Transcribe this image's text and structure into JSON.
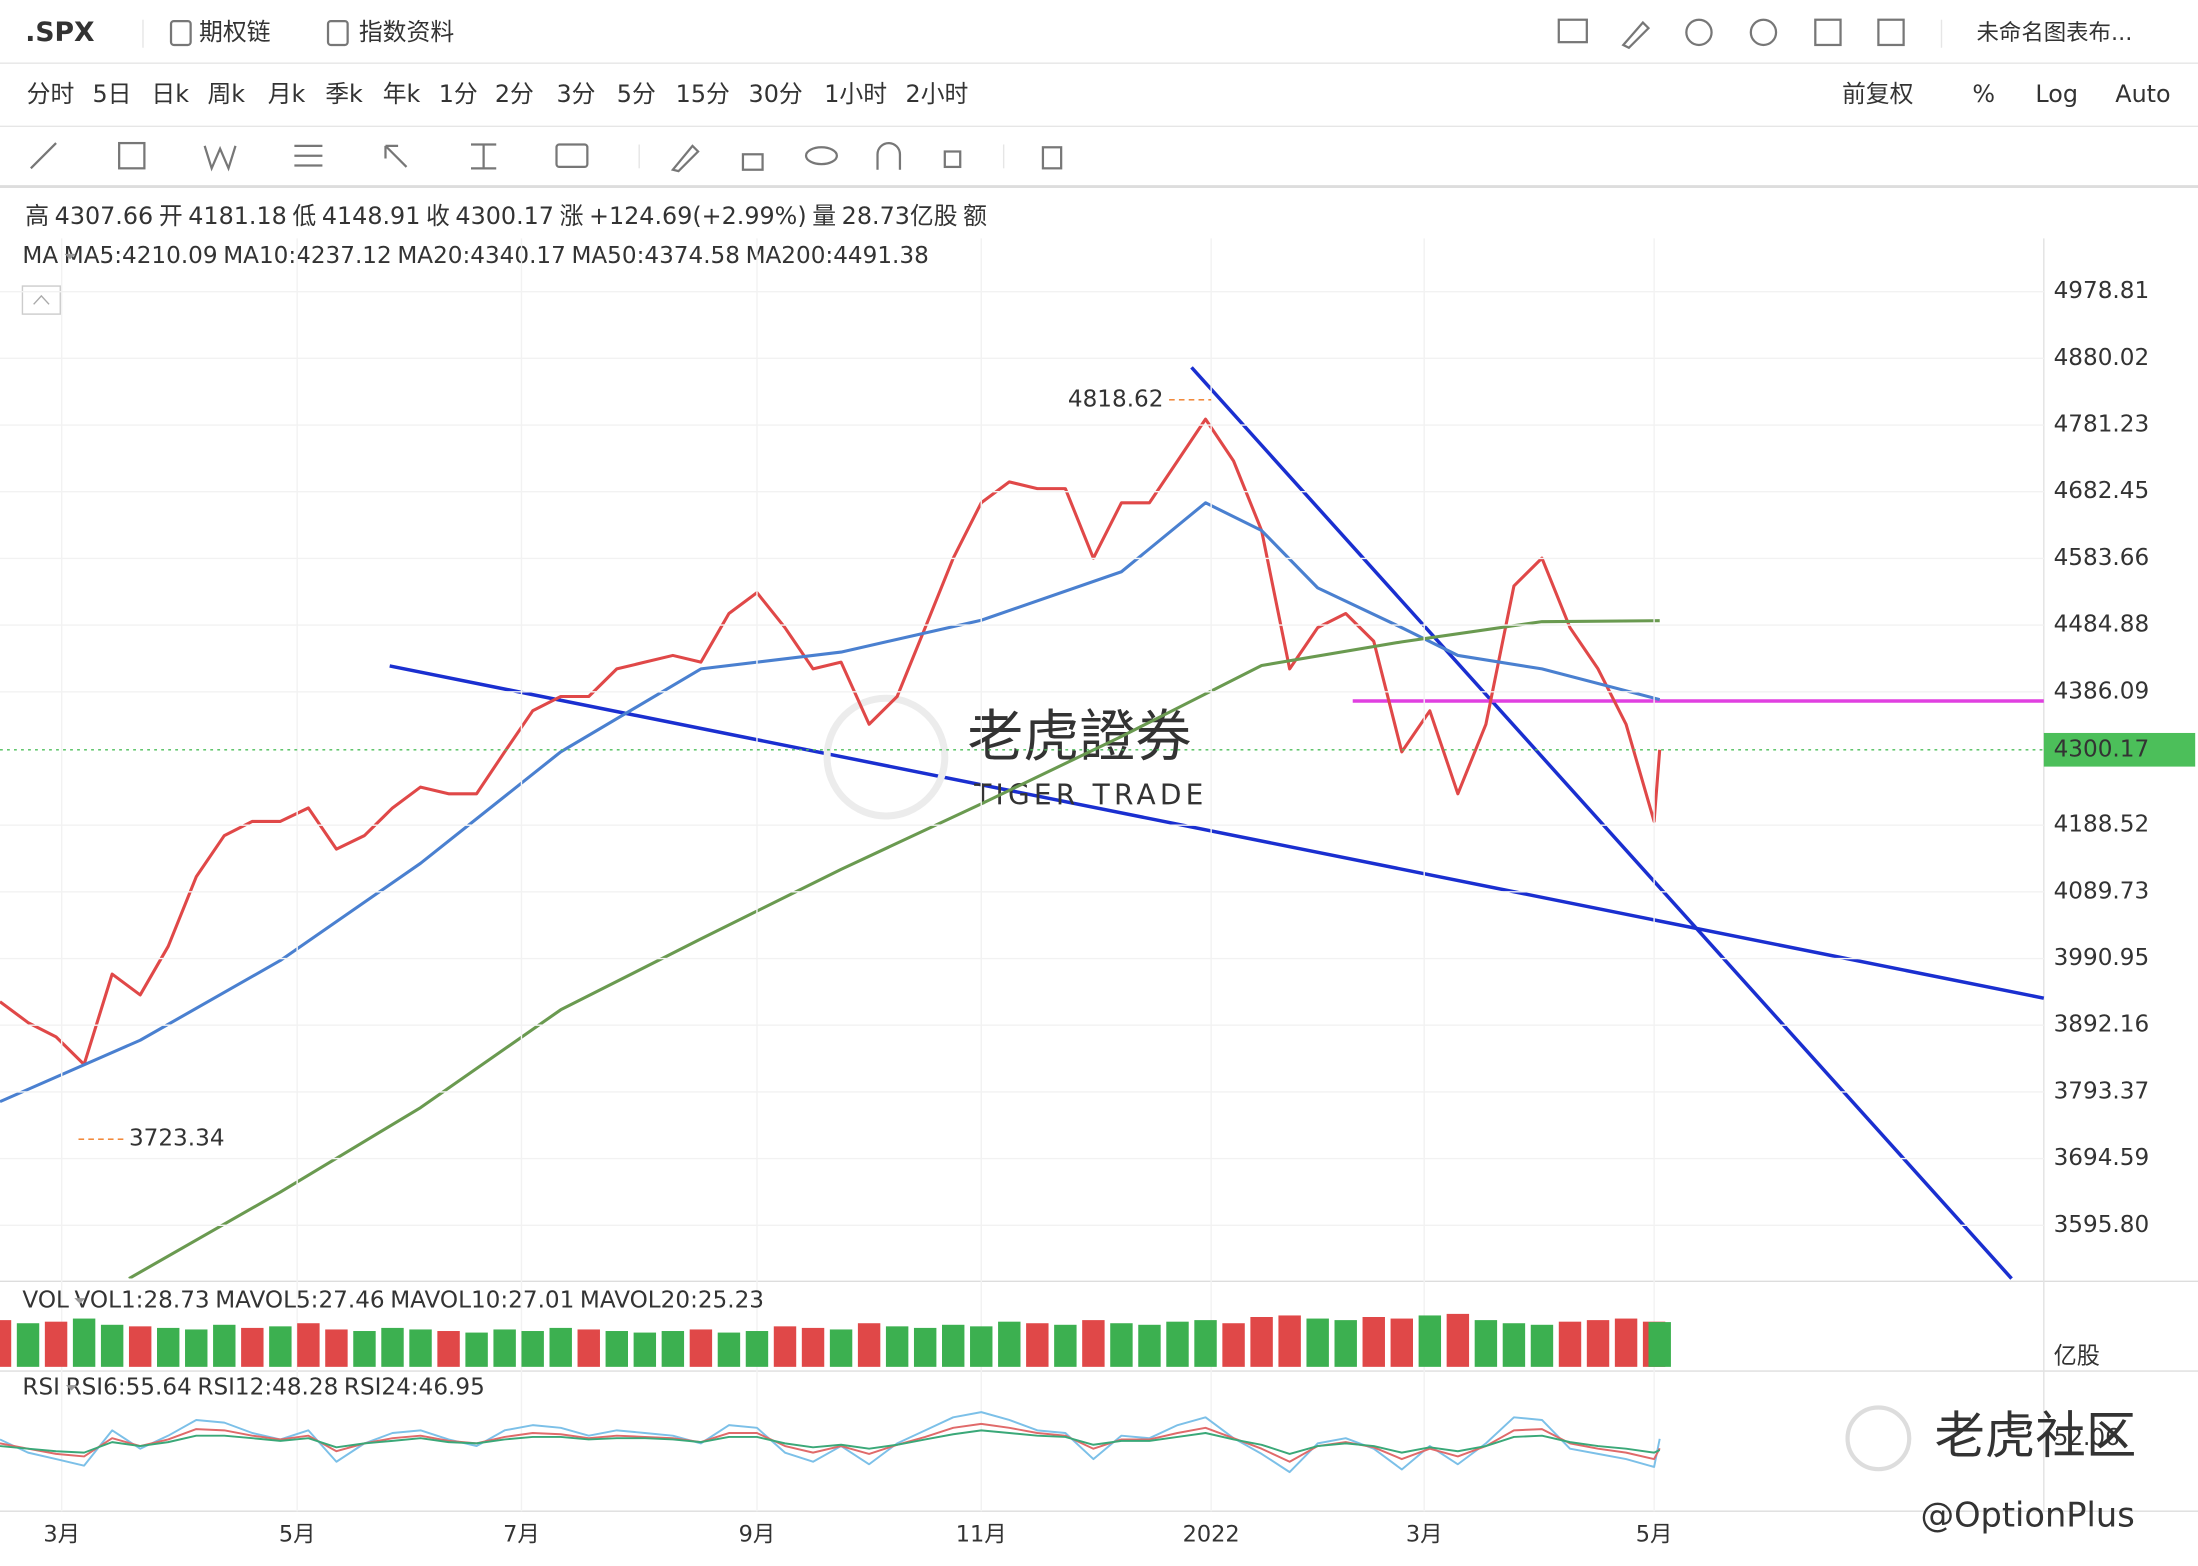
{
  "header": {
    "symbol": ".SPX",
    "links": [
      "期权链",
      "指数资料"
    ],
    "layout_name": "未命名图表布..."
  },
  "periods": [
    "分时",
    "5日",
    "日k",
    "周k",
    "月k",
    "季k",
    "年k",
    "1分",
    "2分",
    "3分",
    "5分",
    "15分",
    "30分",
    "1小时",
    "2小时"
  ],
  "active_period": 2,
  "right_controls": [
    "前复权",
    "%",
    "Log",
    "Auto"
  ],
  "quote": [
    {
      "label": "高",
      "value": 4307.66,
      "color": "#3cb050"
    },
    {
      "label": "开",
      "value": 4181.18,
      "color": "#3cb050"
    },
    {
      "label": "低",
      "value": 4148.91,
      "color": "#e04848"
    },
    {
      "label": "收",
      "value": 4300.17,
      "color": "#3cb050"
    },
    {
      "label": "涨",
      "text": "+124.69(+2.99%)",
      "color": "#3cb050"
    },
    {
      "label": "量",
      "text": "28.73亿股",
      "color": "#333333"
    },
    {
      "label": "额"
    }
  ],
  "watermarks": {
    "main": "老虎證券",
    "sub": "TIGER TRADE",
    "community": "老虎社区",
    "handle": "@OptionPlus"
  },
  "chart_data": [
    {
      "type": "line",
      "legend_label": "MA",
      "legend": [
        {
          "text": "MA5:4210.09",
          "color": "#a070e0"
        },
        {
          "text": "MA10:4237.12",
          "color": "#e0406a"
        },
        {
          "text": "MA20:4340.17",
          "color": "#f0b070"
        },
        {
          "text": "MA50:4374.58",
          "color": "#4a80d0"
        },
        {
          "text": "MA200:4491.38",
          "color": "#6a9a50"
        }
      ],
      "x": [
        0,
        5,
        10,
        15,
        20,
        25,
        30,
        35,
        40,
        45,
        50,
        55,
        60,
        65,
        70,
        75,
        80,
        85,
        90,
        95,
        100,
        105,
        110,
        115,
        120,
        125,
        130,
        135,
        140,
        145,
        150,
        155,
        160,
        165,
        170,
        175,
        180,
        185,
        190,
        195,
        200,
        205,
        210,
        215,
        220,
        225,
        230,
        235,
        240,
        245,
        250,
        255,
        260,
        265,
        270,
        275,
        280,
        285,
        290,
        295,
        296
      ],
      "xlim": [
        0,
        364.5
      ],
      "xticks": [
        {
          "value": 11,
          "label": "3月"
        },
        {
          "value": 53,
          "label": "5月"
        },
        {
          "value": 93,
          "label": "7月"
        },
        {
          "value": 135,
          "label": "9月"
        },
        {
          "value": 175,
          "label": "11月"
        },
        {
          "value": 216,
          "label": "2022"
        },
        {
          "value": 254,
          "label": "3月"
        },
        {
          "value": 295,
          "label": "5月"
        }
      ],
      "ylim": [
        3516.9,
        5057.7
      ],
      "yticks": [
        4978.81,
        4880.02,
        4781.23,
        4682.45,
        4583.66,
        4484.88,
        4386.09,
        4188.52,
        4089.73,
        3990.95,
        3892.16,
        3793.37,
        3694.59,
        {
          "value": 3595.8,
          "label": "3595.80"
        }
      ],
      "grid": true,
      "series": [
        {
          "color": "#e04848",
          "values": [
            3927,
            3896,
            3875,
            3834,
            3968,
            3937,
            4009,
            4112,
            4173,
            4194,
            4194,
            4214,
            4153,
            4173,
            4214,
            4245,
            4235,
            4235,
            4297,
            4358,
            4379,
            4379,
            4420,
            4430,
            4440,
            4430,
            4502,
            4533,
            4481,
            4420,
            4430,
            4338,
            4379,
            4481,
            4584,
            4666,
            4697,
            4687,
            4687,
            4584,
            4666,
            4666,
            4728,
            4790,
            4728,
            4625,
            4420,
            4481,
            4502,
            4461,
            4297,
            4358,
            4235,
            4338,
            4543,
            4584,
            4481,
            4420,
            4338,
            4194,
            4300.17
          ]
        },
        {
          "color": "#4a80d0",
          "x": [
            0,
            25,
            50,
            75,
            100,
            125,
            150,
            175,
            200,
            215,
            225,
            235,
            250,
            260,
            275,
            296
          ],
          "values": [
            3779,
            3870,
            3988,
            4132,
            4297,
            4420,
            4445,
            4492,
            4564,
            4666,
            4625,
            4540,
            4481,
            4440,
            4420,
            4374.58
          ]
        },
        {
          "color": "#6a9a50",
          "x": [
            23,
            50,
            75,
            100,
            125,
            150,
            175,
            200,
            225,
            250,
            275,
            296
          ],
          "values": [
            3517,
            3645,
            3770,
            3915,
            4020,
            4123,
            4220,
            4320,
            4425,
            4460,
            4490,
            4491.38
          ]
        }
      ],
      "high_marker": {
        "x": 216,
        "value": 4818.62,
        "color": "#f07a20"
      },
      "low_marker": {
        "x": 14,
        "value": 3723.34,
        "color": "#f07a20"
      },
      "last_price": {
        "value": 4300.17,
        "color": "#4cbf5a"
      }
    },
    {
      "type": "bar",
      "legend_label": "VOL",
      "legend": [
        {
          "text": "VOL1:28.73",
          "color": "#f08070"
        },
        {
          "text": "MAVOL5:27.46",
          "color": "#7cc0e8"
        },
        {
          "text": "MAVOL10:27.01",
          "color": "#d0406a"
        },
        {
          "text": "MAVOL20:25.23",
          "color": "#f0c050"
        }
      ],
      "unit": "亿股",
      "x": [
        0,
        5,
        10,
        15,
        20,
        25,
        30,
        35,
        40,
        45,
        50,
        55,
        60,
        65,
        70,
        75,
        80,
        85,
        90,
        95,
        100,
        105,
        110,
        115,
        120,
        125,
        130,
        135,
        140,
        145,
        150,
        155,
        160,
        165,
        170,
        175,
        180,
        185,
        190,
        195,
        200,
        205,
        210,
        215,
        220,
        225,
        230,
        235,
        240,
        245,
        250,
        255,
        260,
        265,
        270,
        275,
        280,
        285,
        290,
        295,
        296
      ],
      "xlim": [
        0,
        364.5
      ],
      "ylim": [
        0,
        36
      ],
      "values": [
        30,
        28,
        29,
        31,
        27,
        26,
        25,
        24,
        27,
        25,
        26,
        28,
        24,
        23,
        25,
        24,
        23,
        22,
        24,
        23,
        25,
        24,
        23,
        22,
        23,
        24,
        22,
        23,
        26,
        25,
        24,
        28,
        26,
        25,
        27,
        26,
        29,
        28,
        27,
        30,
        28,
        27,
        29,
        30,
        28,
        32,
        33,
        31,
        30,
        32,
        31,
        33,
        34,
        30,
        28,
        27,
        29,
        30,
        31,
        29,
        28.73
      ],
      "colors": [
        "#e04848",
        "#3cb050",
        "#e04848",
        "#3cb050",
        "#3cb050",
        "#e04848",
        "#3cb050",
        "#3cb050",
        "#3cb050",
        "#e04848",
        "#3cb050",
        "#e04848",
        "#e04848",
        "#3cb050",
        "#3cb050",
        "#3cb050",
        "#e04848",
        "#3cb050",
        "#3cb050",
        "#3cb050",
        "#3cb050",
        "#e04848",
        "#3cb050",
        "#3cb050",
        "#3cb050",
        "#e04848",
        "#3cb050",
        "#3cb050",
        "#e04848",
        "#e04848",
        "#3cb050",
        "#e04848",
        "#3cb050",
        "#3cb050",
        "#3cb050",
        "#3cb050",
        "#3cb050",
        "#e04848",
        "#3cb050",
        "#e04848",
        "#3cb050",
        "#3cb050",
        "#3cb050",
        "#3cb050",
        "#e04848",
        "#e04848",
        "#e04848",
        "#3cb050",
        "#3cb050",
        "#e04848",
        "#e04848",
        "#3cb050",
        "#e04848",
        "#3cb050",
        "#3cb050",
        "#3cb050",
        "#e04848",
        "#e04848",
        "#e04848",
        "#e04848",
        "#3cb050"
      ]
    },
    {
      "type": "line",
      "legend_label": "RSI",
      "legend": [
        {
          "text": "RSI6:55.64",
          "color": "#7cc0e8"
        },
        {
          "text": "RSI12:48.28",
          "color": "#e06a6a"
        },
        {
          "text": "RSI24:46.95",
          "color": "#3aa878"
        }
      ],
      "axis_label": "52.06",
      "x": [
        0,
        5,
        10,
        15,
        20,
        25,
        30,
        35,
        40,
        45,
        50,
        55,
        60,
        65,
        70,
        75,
        80,
        85,
        90,
        95,
        100,
        105,
        110,
        115,
        120,
        125,
        130,
        135,
        140,
        145,
        150,
        155,
        160,
        165,
        170,
        175,
        180,
        185,
        190,
        195,
        200,
        205,
        210,
        215,
        220,
        225,
        230,
        235,
        240,
        245,
        250,
        255,
        260,
        265,
        270,
        275,
        280,
        285,
        290,
        295,
        296
      ],
      "xlim": [
        0,
        364.5
      ],
      "ylim": [
        0,
        100
      ],
      "series": [
        {
          "color": "#7cc0e8",
          "values": [
            55,
            45,
            40,
            35,
            62,
            48,
            58,
            70,
            68,
            60,
            55,
            62,
            38,
            52,
            60,
            62,
            55,
            50,
            62,
            66,
            64,
            58,
            62,
            60,
            58,
            52,
            66,
            64,
            45,
            38,
            50,
            36,
            52,
            62,
            72,
            76,
            70,
            62,
            60,
            40,
            58,
            56,
            66,
            72,
            56,
            44,
            30,
            52,
            56,
            48,
            32,
            50,
            36,
            52,
            72,
            70,
            48,
            44,
            40,
            34,
            55.64
          ]
        },
        {
          "color": "#e06a6a",
          "values": [
            52,
            48,
            44,
            42,
            56,
            50,
            55,
            63,
            62,
            58,
            55,
            58,
            46,
            52,
            56,
            58,
            54,
            52,
            57,
            60,
            59,
            56,
            58,
            57,
            56,
            53,
            60,
            60,
            50,
            45,
            50,
            44,
            51,
            57,
            64,
            67,
            64,
            60,
            58,
            48,
            55,
            55,
            60,
            64,
            56,
            48,
            38,
            50,
            53,
            49,
            40,
            48,
            42,
            50,
            62,
            63,
            52,
            48,
            45,
            40,
            48.28
          ]
        },
        {
          "color": "#3aa878",
          "values": [
            50,
            48,
            46,
            45,
            53,
            50,
            53,
            58,
            58,
            56,
            54,
            56,
            49,
            52,
            54,
            56,
            53,
            52,
            55,
            57,
            57,
            55,
            56,
            56,
            55,
            53,
            57,
            57,
            52,
            49,
            51,
            48,
            51,
            55,
            59,
            62,
            60,
            58,
            57,
            51,
            54,
            54,
            57,
            60,
            55,
            51,
            44,
            50,
            52,
            50,
            45,
            49,
            46,
            50,
            57,
            58,
            53,
            50,
            48,
            45,
            46.95
          ]
        }
      ]
    }
  ]
}
